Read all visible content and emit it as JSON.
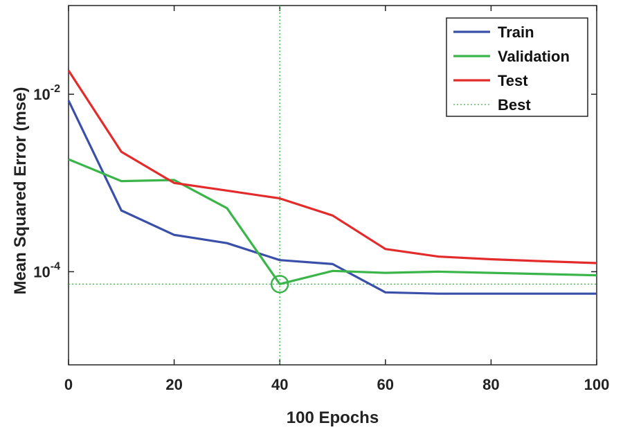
{
  "chart_data": {
    "type": "line",
    "title": "",
    "xlabel": "100 Epochs",
    "ylabel": "Mean Squared Error  (mse)",
    "xlim": [
      0,
      100
    ],
    "ylim_log10": [
      -5.05,
      -1.0
    ],
    "y_scale": "log",
    "x_ticks": [
      0,
      20,
      40,
      60,
      80,
      100
    ],
    "y_ticks": [
      {
        "value": 0.01,
        "base": "10",
        "exp": "-2"
      },
      {
        "value": 0.0001,
        "base": "10",
        "exp": "-4"
      }
    ],
    "series": [
      {
        "name": "Train",
        "color": "#3a4fa8",
        "x": [
          0,
          10,
          20,
          30,
          40,
          50,
          60,
          70,
          80,
          90,
          100
        ],
        "values": [
          0.0085,
          0.00049,
          0.00026,
          0.00021,
          0.000135,
          0.000122,
          5.85e-05,
          5.65e-05,
          5.65e-05,
          5.65e-05,
          5.65e-05
        ]
      },
      {
        "name": "Validation",
        "color": "#3ab54a",
        "x": [
          0,
          10,
          20,
          30,
          40,
          50,
          60,
          70,
          80,
          90,
          100
        ],
        "values": [
          0.00185,
          0.00105,
          0.00108,
          0.00052,
          7.25e-05,
          0.000102,
          9.7e-05,
          0.0001,
          9.7e-05,
          9.4e-05,
          9.1e-05
        ]
      },
      {
        "name": "Test",
        "color": "#e32b2b",
        "x": [
          0,
          10,
          20,
          30,
          40,
          50,
          60,
          70,
          80,
          90,
          100
        ],
        "values": [
          0.0185,
          0.00225,
          0.001,
          0.00082,
          0.00067,
          0.00043,
          0.00018,
          0.000148,
          0.000138,
          0.000131,
          0.000125
        ]
      }
    ],
    "best": {
      "name": "Best",
      "epoch": 40,
      "value": 7.25e-05,
      "color": "#3ab54a"
    },
    "legend_position": "top-right",
    "grid": false
  }
}
